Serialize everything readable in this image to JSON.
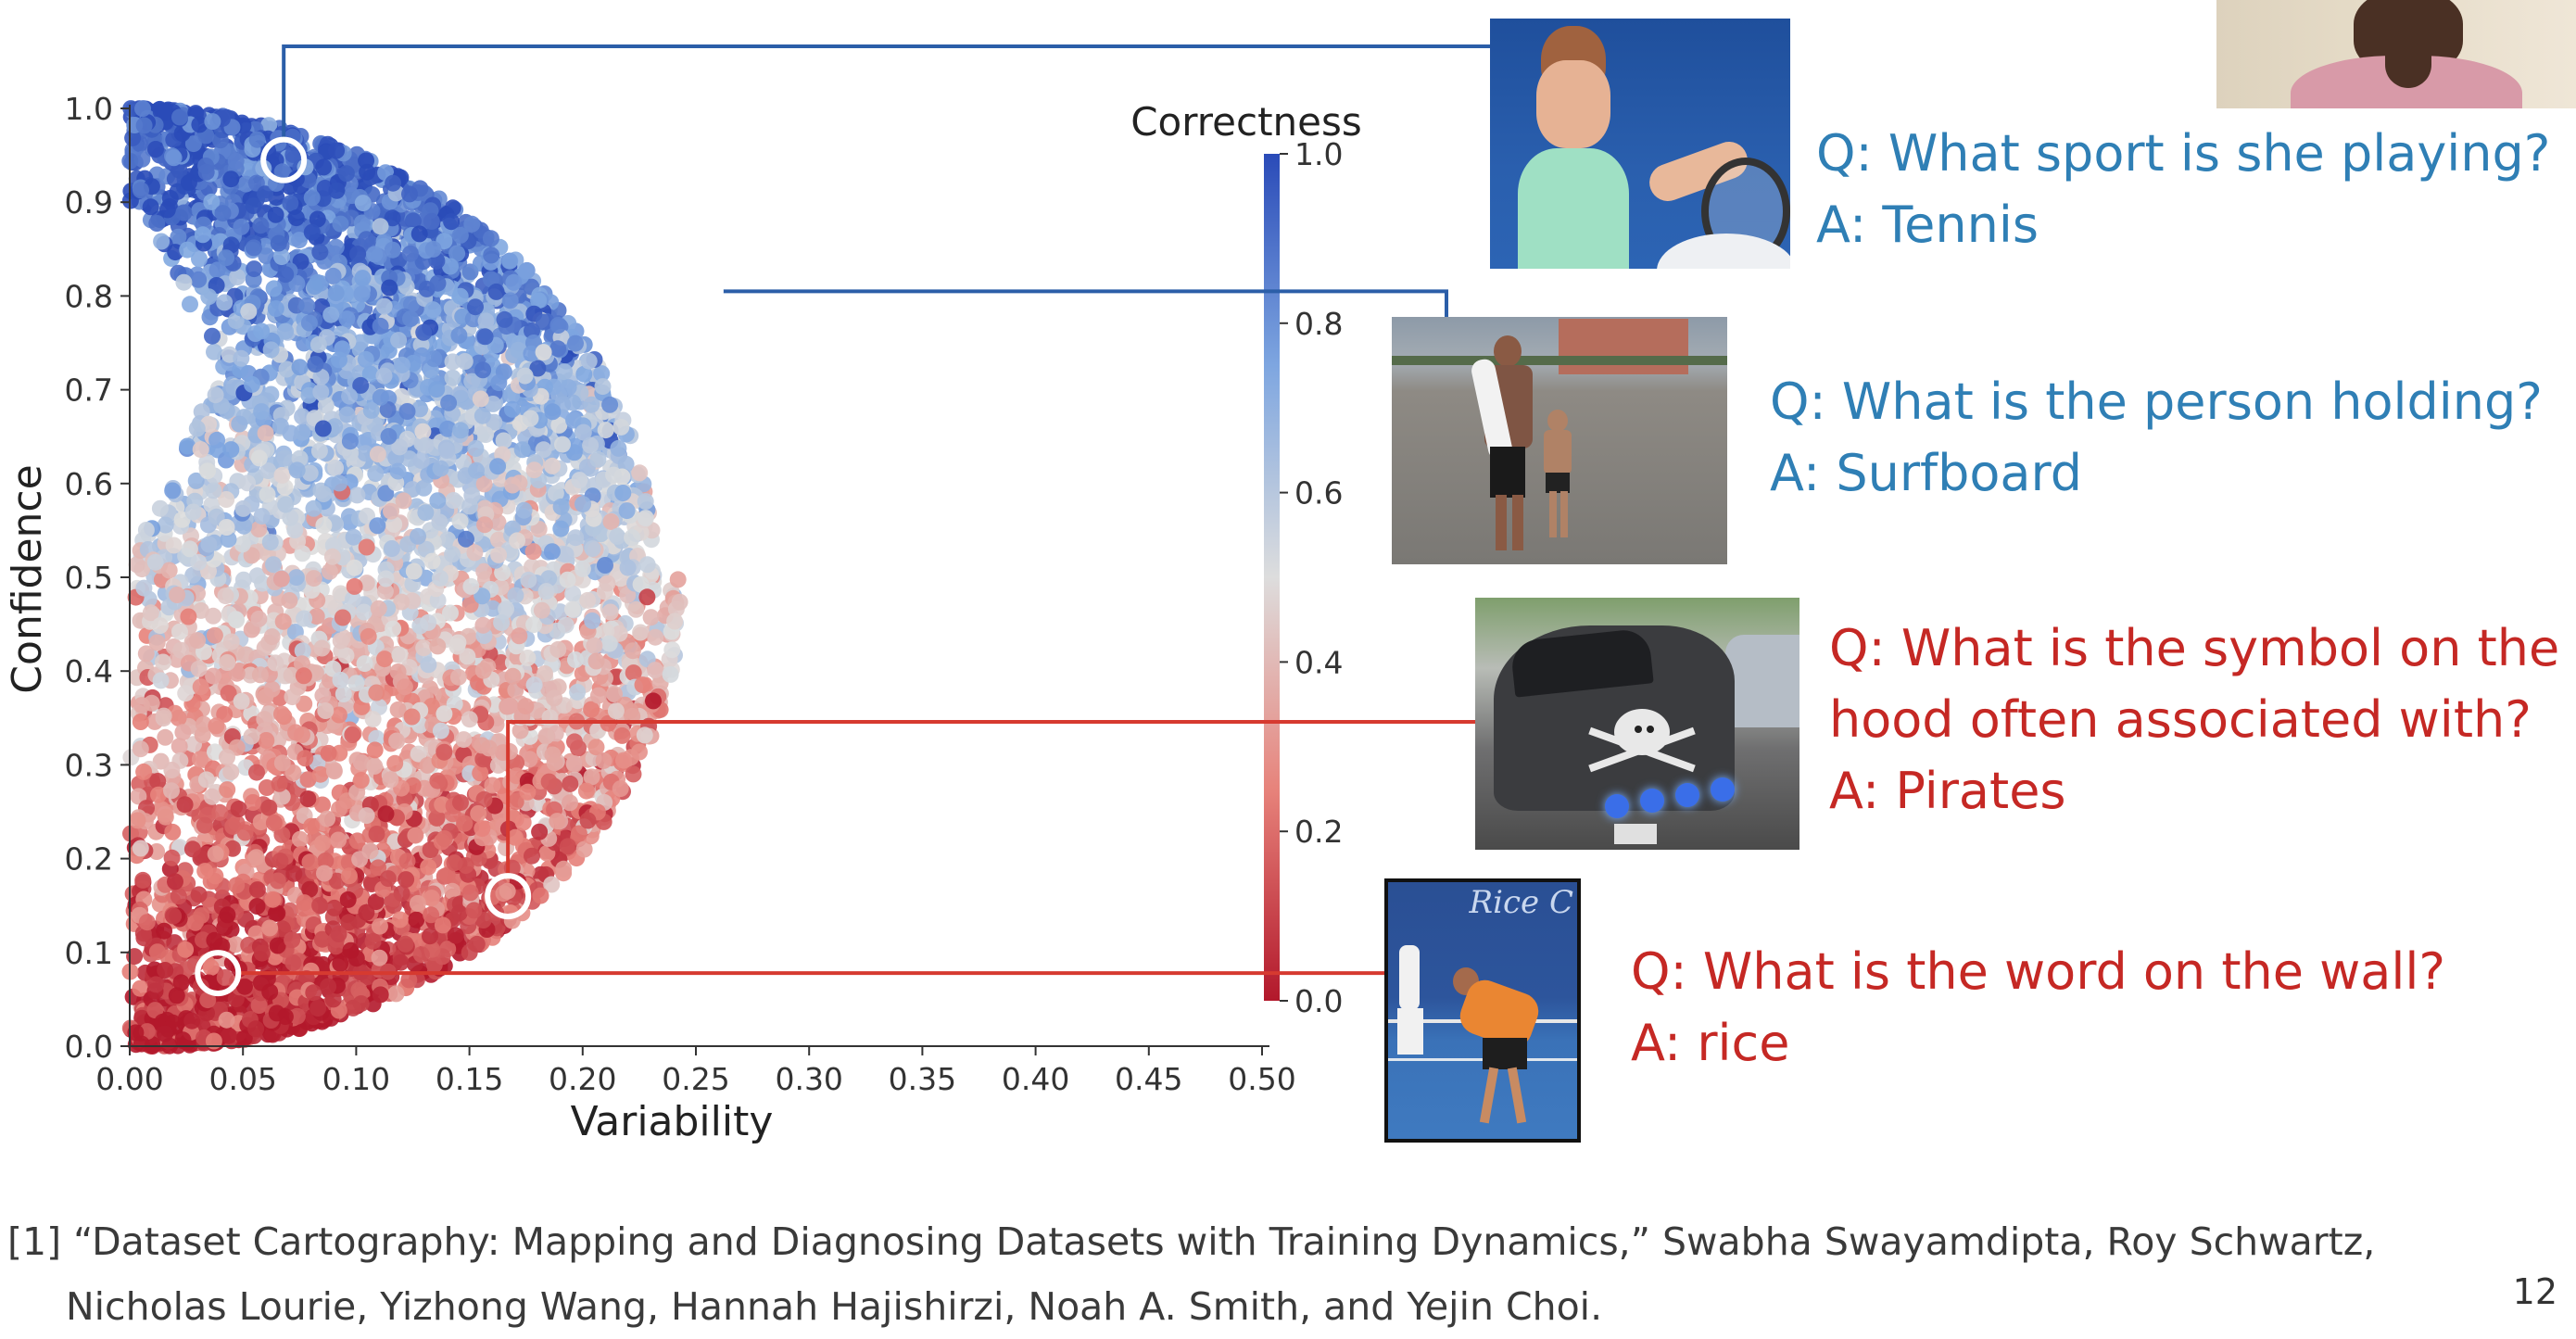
{
  "chart_data": {
    "type": "scatter",
    "xlabel": "Variability",
    "ylabel": "Confidence",
    "xlim": [
      0.0,
      0.5
    ],
    "ylim": [
      0.0,
      1.0
    ],
    "xticks": [
      "0.00",
      "0.05",
      "0.10",
      "0.15",
      "0.20",
      "0.25",
      "0.30",
      "0.35",
      "0.40",
      "0.45",
      "0.50"
    ],
    "yticks": [
      "0.0",
      "0.1",
      "0.2",
      "0.3",
      "0.4",
      "0.5",
      "0.6",
      "0.7",
      "0.8",
      "0.9",
      "1.0"
    ],
    "colorbar": {
      "label": "Correctness",
      "range": [
        0.0,
        1.0
      ],
      "ticks": [
        "0.0",
        "0.2",
        "0.4",
        "0.6",
        "0.8",
        "1.0"
      ],
      "colormap": "coolwarm-reversed",
      "colors": [
        "#b2182b",
        "#e7837b",
        "#dddddd",
        "#7ea6e0",
        "#2a4bb8"
      ]
    },
    "grid": false,
    "highlighted_points": [
      {
        "x": 0.068,
        "y": 0.945,
        "example": "tennis",
        "line_color": "#2b5ea8"
      },
      {
        "x": 0.252,
        "y": 0.805,
        "example": "surfboard",
        "line_color": "#2b5ea8"
      },
      {
        "x": 0.167,
        "y": 0.16,
        "example": "pirates",
        "line_color": "#d63a30"
      },
      {
        "x": 0.039,
        "y": 0.078,
        "example": "rice",
        "line_color": "#d63a30"
      }
    ]
  },
  "examples": [
    {
      "id": "tennis",
      "question": "Q: What sport is she playing?",
      "answer": "A: Tennis",
      "color": "#2f7fb5"
    },
    {
      "id": "surfboard",
      "question": "Q: What is the person holding?",
      "answer": "A: Surfboard",
      "color": "#2f7fb5"
    },
    {
      "id": "pirates",
      "question_line1": "Q: What is the symbol on the",
      "question_line2": "hood often associated with?",
      "answer": "A: Pirates",
      "color": "#c52824"
    },
    {
      "id": "rice",
      "question": "Q: What is the word on the wall?",
      "answer": "A: rice",
      "color": "#c52824",
      "photo_text": "Rice C"
    }
  ],
  "footnote": {
    "line1": "[1] “Dataset Cartography: Mapping and Diagnosing Datasets with Training Dynamics,” Swabha Swayamdipta, Roy Schwartz,",
    "line2": "Nicholas Lourie, Yizhong Wang, Hannah Hajishirzi, Noah A. Smith, and Yejin Choi."
  },
  "page_number": "12"
}
